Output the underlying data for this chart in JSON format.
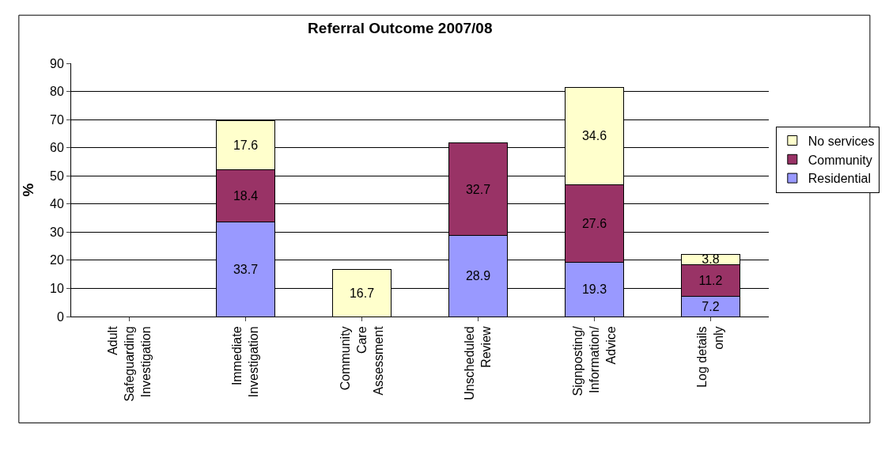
{
  "chart_data": {
    "type": "bar",
    "title": "Referral Outcome 2007/08",
    "ylabel": "%",
    "categories": [
      "Adult\nSafeguarding\nInvestigation",
      "Immediate\nInvestigation",
      "Community\nCare\nAssessment",
      "Unscheduled\nReview",
      "Signposting/\nInformation/\nAdvice",
      "Log details\nonly"
    ],
    "series": [
      {
        "name": "Residential",
        "color": "#9999ff",
        "values": [
          null,
          33.7,
          null,
          28.9,
          19.3,
          7.2
        ]
      },
      {
        "name": "Community",
        "color": "#993366",
        "values": [
          null,
          18.4,
          null,
          32.7,
          27.6,
          11.2
        ]
      },
      {
        "name": "No services",
        "color": "#ffffcc",
        "values": [
          null,
          17.6,
          16.7,
          null,
          34.6,
          3.8
        ]
      }
    ],
    "stacked": true,
    "ylim": [
      0,
      90
    ],
    "yticks": [
      0,
      10,
      20,
      30,
      40,
      50,
      60,
      70,
      80,
      90
    ],
    "grid": "y",
    "legend": "right",
    "data_labels": true
  }
}
